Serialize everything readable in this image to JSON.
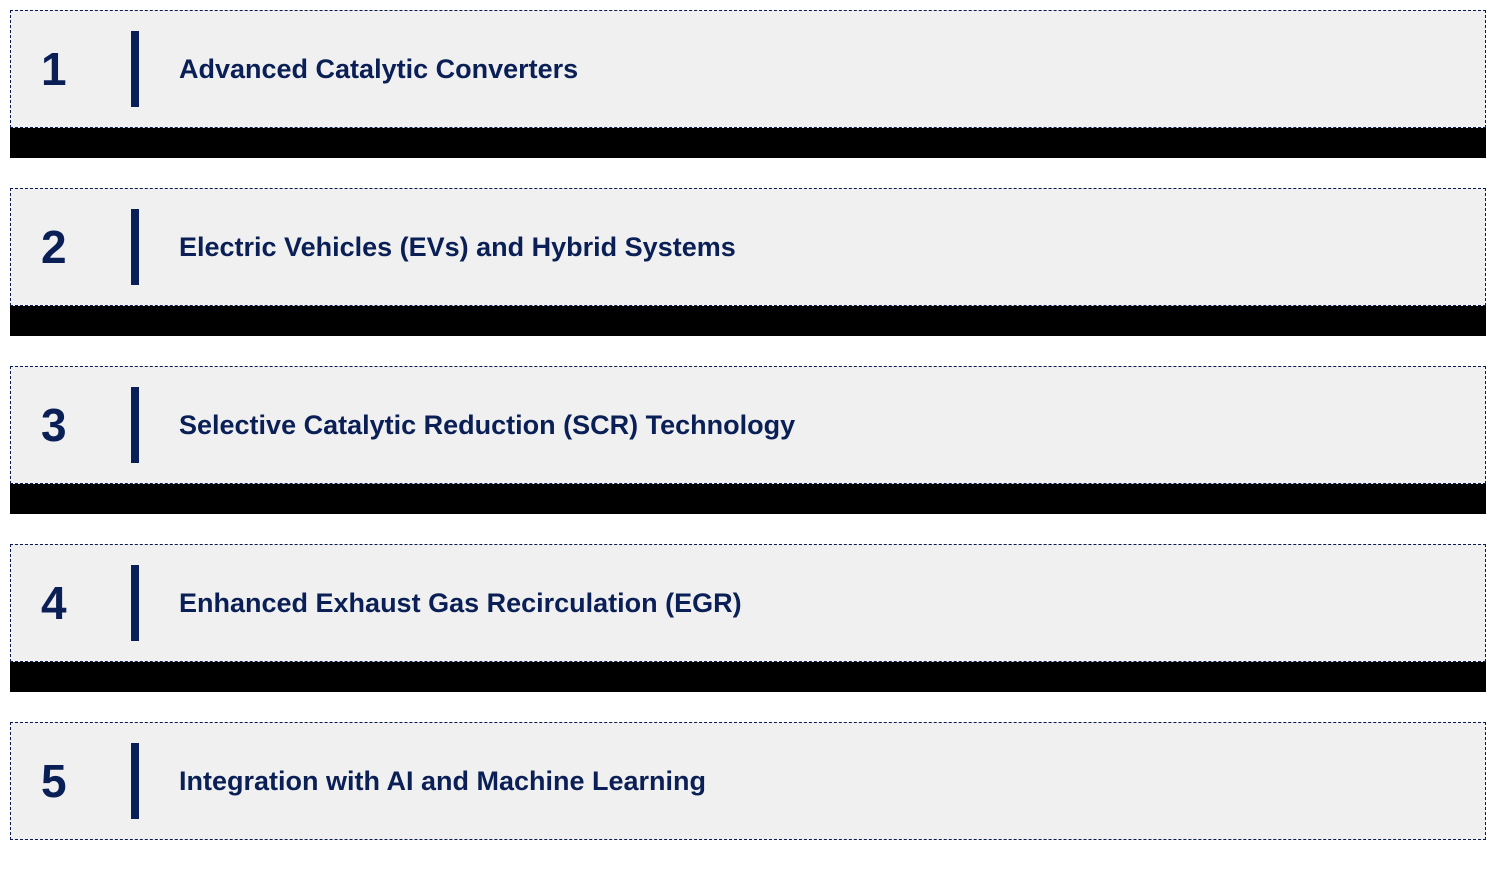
{
  "items": [
    {
      "number": "1",
      "title": "Advanced Catalytic Converters"
    },
    {
      "number": "2",
      "title": "Electric Vehicles (EVs) and Hybrid Systems"
    },
    {
      "number": "3",
      "title": "Selective Catalytic Reduction (SCR) Technology"
    },
    {
      "number": "4",
      "title": "Enhanced Exhaust Gas Recirculation (EGR)"
    },
    {
      "number": "5",
      "title": "Integration with AI and Machine Learning"
    }
  ],
  "colors": {
    "text_color": "#0a1f55",
    "background_color": "#f0f0f0",
    "border_color": "#0a1a4d",
    "divider_color": "#0a1f55",
    "separator_color": "#000000"
  },
  "typography": {
    "number_fontsize": 46,
    "number_fontweight": "bold",
    "title_fontsize": 27,
    "title_fontweight": "bold",
    "font_family": "Arial"
  },
  "layout": {
    "item_height": 118,
    "separator_height": 30,
    "divider_width": 8,
    "divider_height": 76,
    "border_style": "dashed"
  }
}
